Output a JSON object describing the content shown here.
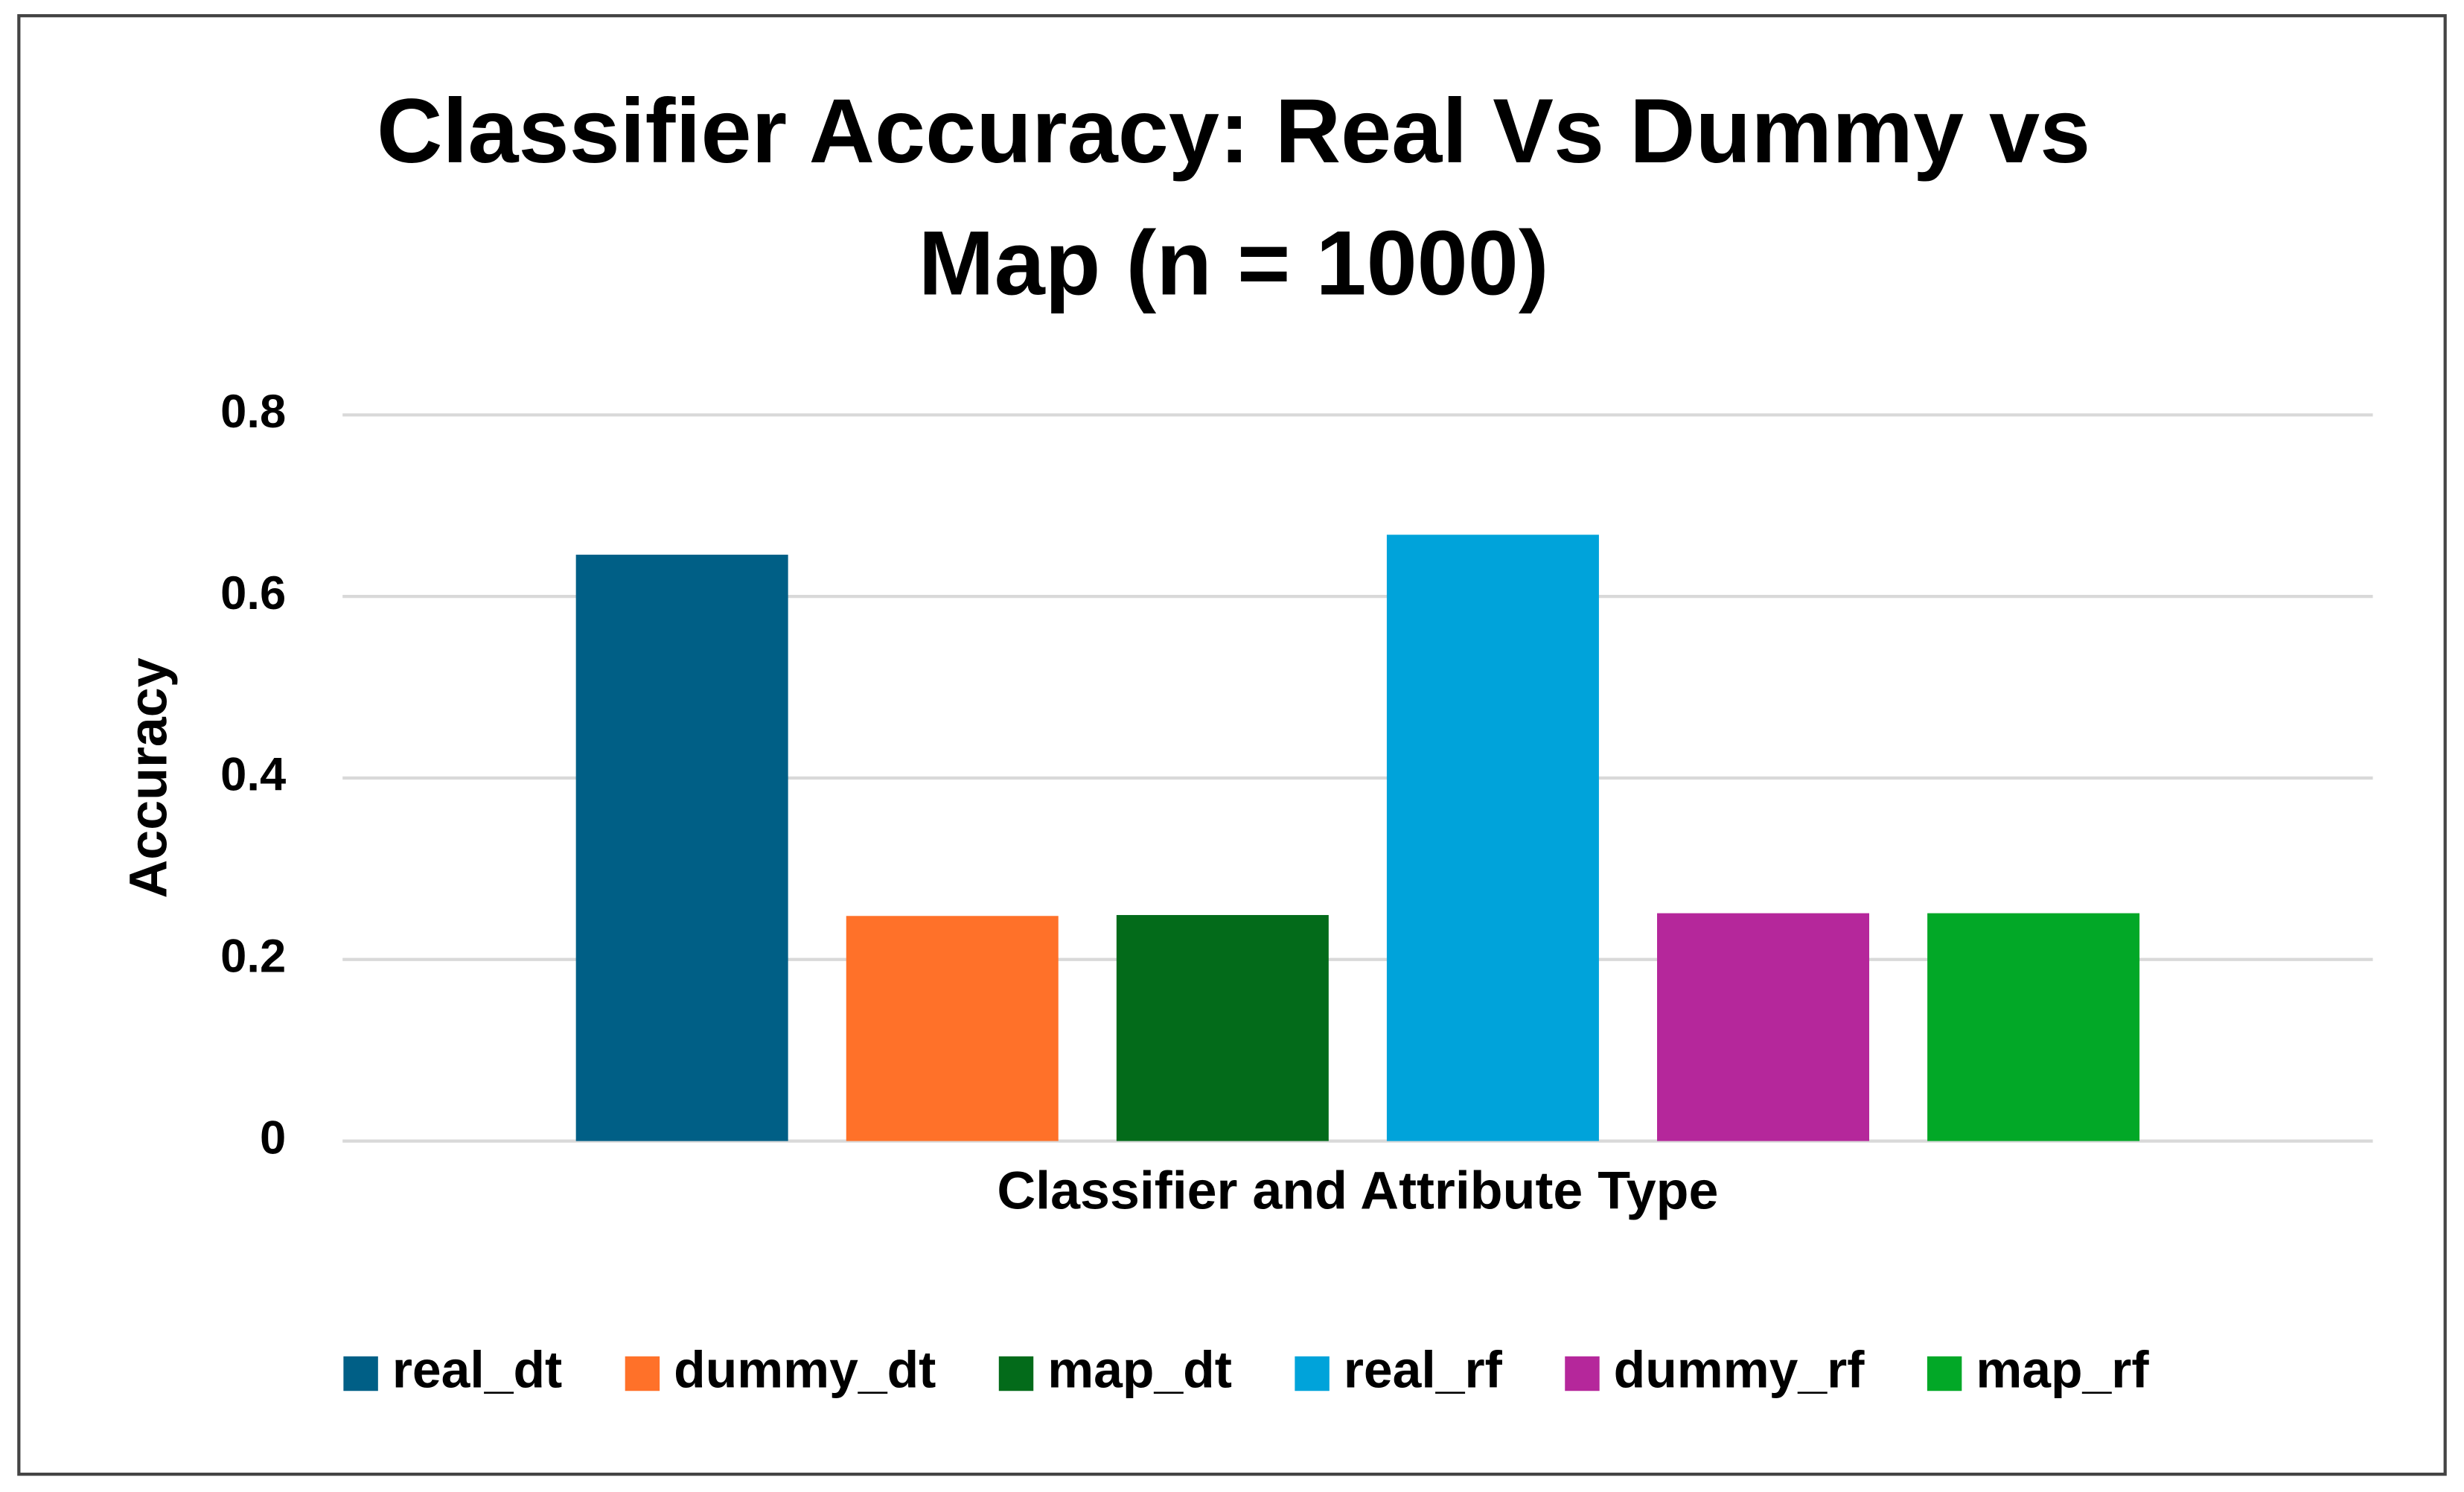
{
  "chart_data": {
    "type": "bar",
    "title": [
      "Classifier Accuracy: Real Vs Dummy vs",
      "Map (n = 1000)"
    ],
    "x_label": "Classifier and Attribute Type",
    "y_label": "Accuracy",
    "categories": [
      null
    ],
    "series": [
      {
        "name": "real_dt",
        "color": "#005f86",
        "values": [
          0.646
        ]
      },
      {
        "name": "dummy_dt",
        "color": "#ff7129",
        "values": [
          0.248
        ]
      },
      {
        "name": "map_dt",
        "color": "#036b1a",
        "values": [
          0.249
        ]
      },
      {
        "name": "real_rf",
        "color": "#00a3da",
        "values": [
          0.668
        ]
      },
      {
        "name": "dummy_rf",
        "color": "#b5279b",
        "values": [
          0.251
        ]
      },
      {
        "name": "map_rf",
        "color": "#02a827",
        "values": [
          0.251
        ]
      }
    ],
    "ylim": [
      0,
      0.8
    ],
    "yticks": [
      0,
      0.2,
      0.4,
      0.6,
      0.8
    ],
    "grid": true,
    "legend": "bottom"
  }
}
